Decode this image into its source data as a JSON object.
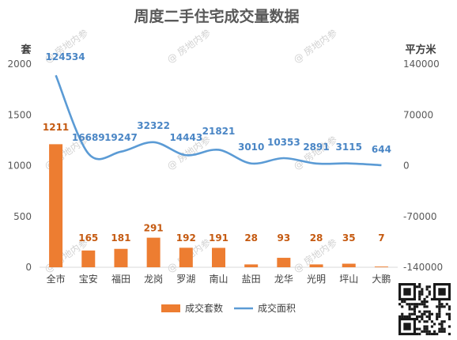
{
  "chart_data": {
    "type": "bar+line",
    "title": "周度二手住宅成交量数据",
    "y_left_unit": "套",
    "y_right_unit": "平方米",
    "y_left_ticks": [
      "0",
      "500",
      "1000",
      "1500",
      "2000"
    ],
    "y_right_ticks": [
      "-140000",
      "-70000",
      "0",
      "70000",
      "140000"
    ],
    "ylim_left": [
      0,
      2000
    ],
    "ylim_right": [
      -140000,
      140000
    ],
    "categories": [
      "全市",
      "宝安",
      "福田",
      "龙岗",
      "罗湖",
      "南山",
      "盐田",
      "龙华",
      "光明",
      "坪山",
      "大鹏"
    ],
    "series": [
      {
        "name": "成交套数",
        "kind": "bar",
        "axis": "left",
        "color": "#ed7d31",
        "values": [
          1211,
          165,
          181,
          291,
          192,
          191,
          28,
          93,
          28,
          35,
          7
        ],
        "labels": [
          "1211",
          "165",
          "181",
          "291",
          "192",
          "191",
          "28",
          "93",
          "28",
          "35",
          "7"
        ]
      },
      {
        "name": "成交面积",
        "kind": "line",
        "axis": "right",
        "color": "#5b9bd5",
        "values": [
          124534,
          16689,
          19247,
          32322,
          14443,
          21821,
          3010,
          10353,
          2891,
          3115,
          644
        ],
        "labels": [
          "124534",
          "16689",
          "19247",
          "32322",
          "14443",
          "21821",
          "3010",
          "10353",
          "2891",
          "3115",
          "644"
        ]
      }
    ],
    "legend_position": "bottom",
    "grid": false
  },
  "watermark": "房地内参",
  "qr_icon": "qr-code-icon"
}
